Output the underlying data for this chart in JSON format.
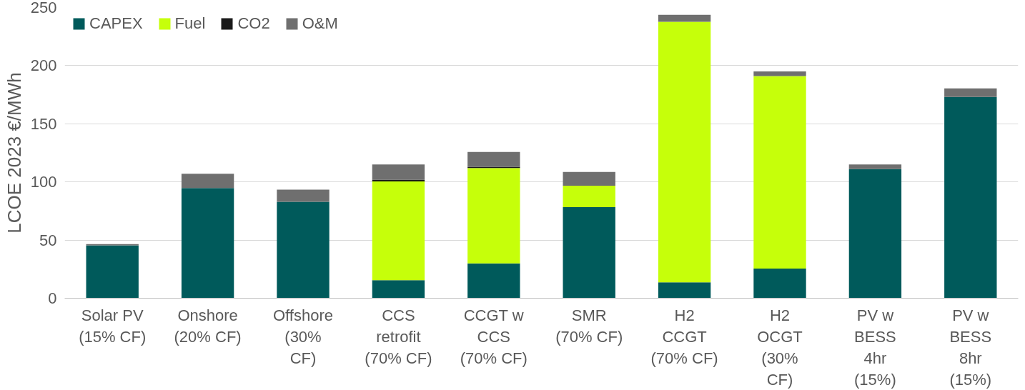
{
  "chart_data": {
    "type": "bar",
    "stacked": true,
    "ylabel": "LCOE 2023 €/MWh",
    "categories": [
      "Solar PV\n(15% CF)",
      "Onshore\n(20% CF)",
      "Offshore\n(30%\nCF)",
      "CCS\nretrofit\n(70% CF)",
      "CCGT w\nCCS\n(70% CF)",
      "SMR\n(70% CF)",
      "H2\nCCGT\n(70% CF)",
      "H2\nOCGT\n(30%\nCF)",
      "PV w\nBESS\n4hr\n(15%)",
      "PV w\nBESS\n8hr\n(15%)"
    ],
    "series": [
      {
        "name": "CAPEX",
        "color": "#005a5b",
        "values": [
          45.5,
          94.8,
          83,
          15.5,
          30,
          78.3,
          13.7,
          25.5,
          111,
          173
        ]
      },
      {
        "name": "Fuel",
        "color": "#c6ff0a",
        "values": [
          0,
          0,
          0,
          85,
          82,
          18.5,
          224,
          165.5,
          0,
          0
        ]
      },
      {
        "name": "CO2",
        "color": "#1a1a1a",
        "values": [
          0,
          0,
          0,
          1.5,
          1,
          0,
          0,
          0,
          0,
          0
        ]
      },
      {
        "name": "O&M",
        "color": "#6f6f6f",
        "values": [
          1,
          12.2,
          10.4,
          13,
          12.7,
          11.7,
          6,
          4,
          4,
          7.5
        ]
      }
    ],
    "ylim": [
      0,
      250
    ],
    "yticks": [
      0,
      50,
      100,
      150,
      200,
      250
    ],
    "grid": "y",
    "legend": "top left"
  }
}
